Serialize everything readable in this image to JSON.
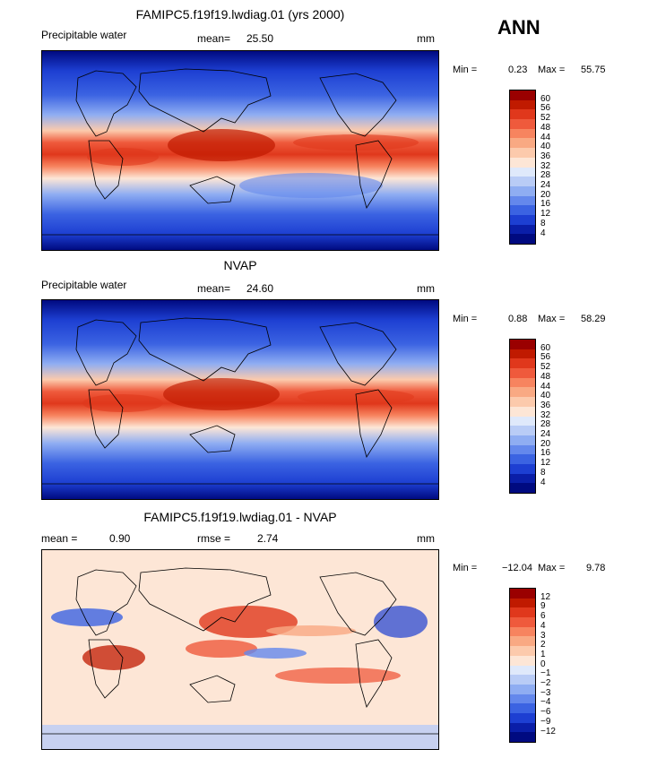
{
  "season": "ANN",
  "panels": [
    {
      "title": "FAMIPC5.f19f19.lwdiag.01 (yrs 2000)",
      "left_label": "Precipitable water",
      "stat1_label": "mean=",
      "stat1_value": "25.50",
      "stat2_label": "",
      "stat2_value": "",
      "units": "mm",
      "min_label": "Min =",
      "min_value": "0.23",
      "max_label": "Max =",
      "max_value": "55.75",
      "colorbar_labels": [
        "60",
        "56",
        "52",
        "48",
        "44",
        "40",
        "36",
        "32",
        "28",
        "24",
        "20",
        "16",
        "12",
        "8",
        "4"
      ],
      "colorbar_colors": [
        "#9a0000",
        "#c01a00",
        "#e0381c",
        "#ef5a3c",
        "#f7845f",
        "#f9a983",
        "#fccaac",
        "#fde6d6",
        "#dfe9fb",
        "#b9ccf6",
        "#8fadf2",
        "#6488ec",
        "#3b63e2",
        "#1d3fd2",
        "#0a1ea8",
        "#000a80"
      ]
    },
    {
      "title": "NVAP",
      "left_label": "Precipitable water",
      "stat1_label": "mean=",
      "stat1_value": "24.60",
      "stat2_label": "",
      "stat2_value": "",
      "units": "mm",
      "min_label": "Min =",
      "min_value": "0.88",
      "max_label": "Max =",
      "max_value": "58.29",
      "colorbar_labels": [
        "60",
        "56",
        "52",
        "48",
        "44",
        "40",
        "36",
        "32",
        "28",
        "24",
        "20",
        "16",
        "12",
        "8",
        "4"
      ],
      "colorbar_colors": [
        "#9a0000",
        "#c01a00",
        "#e0381c",
        "#ef5a3c",
        "#f7845f",
        "#f9a983",
        "#fccaac",
        "#fde6d6",
        "#dfe9fb",
        "#b9ccf6",
        "#8fadf2",
        "#6488ec",
        "#3b63e2",
        "#1d3fd2",
        "#0a1ea8",
        "#000a80"
      ]
    },
    {
      "title": "FAMIPC5.f19f19.lwdiag.01 - NVAP",
      "left_label": "",
      "stat1_label": "mean =",
      "stat1_value": "0.90",
      "stat2_label": "rmse =",
      "stat2_value": "2.74",
      "units": "mm",
      "min_label": "Min =",
      "min_value": "−12.04",
      "max_label": "Max =",
      "max_value": "9.78",
      "colorbar_labels": [
        "12",
        "9",
        "6",
        "4",
        "3",
        "2",
        "1",
        "0",
        "−1",
        "−2",
        "−3",
        "−4",
        "−6",
        "−9",
        "−12"
      ],
      "colorbar_colors": [
        "#9a0000",
        "#c01a00",
        "#e0381c",
        "#ef5a3c",
        "#f7845f",
        "#f9a983",
        "#fccaac",
        "#fde6d6",
        "#dfe9fb",
        "#b9ccf6",
        "#8fadf2",
        "#6488ec",
        "#3b63e2",
        "#1d3fd2",
        "#0a1ea8",
        "#000a80"
      ]
    }
  ]
}
